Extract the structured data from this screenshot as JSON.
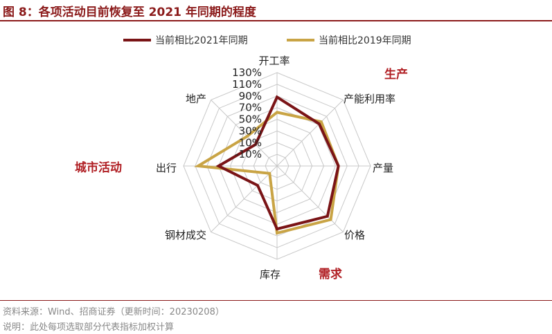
{
  "title": "图 8：各项活动目前恢复至 2021 年同期的程度",
  "source": "资料来源：Wind、招商证券（更新时间：20230208）",
  "note": "说明：此处每项选取部分代表指标加权计算",
  "groups": {
    "production": "生产",
    "demand": "需求",
    "city": "城市活动"
  },
  "colors": {
    "s2021": "#7A1416",
    "s2019": "#C9A445",
    "grid": "#C8C8C8",
    "group": "#B01E23"
  },
  "chart_data": {
    "type": "radar",
    "axes": [
      "开工率",
      "产能利用率",
      "产量",
      "价格",
      "库存",
      "钢材成交",
      "出行",
      "地产"
    ],
    "rlim": [
      -30,
      130
    ],
    "ticks": [
      "130%",
      "110%",
      "90%",
      "70%",
      "50%",
      "30%",
      "10%",
      "-10%"
    ],
    "tick_values": [
      130,
      110,
      90,
      70,
      50,
      30,
      10,
      -10
    ],
    "series": [
      {
        "name": "当前相比2021年同期",
        "values": [
          88,
          72,
          75,
          92,
          78,
          17,
          70,
          22
        ]
      },
      {
        "name": "当前相比2019年同期",
        "values": [
          62,
          77,
          75,
          100,
          85,
          -12,
          105,
          42
        ]
      }
    ],
    "legend_position": "top"
  }
}
